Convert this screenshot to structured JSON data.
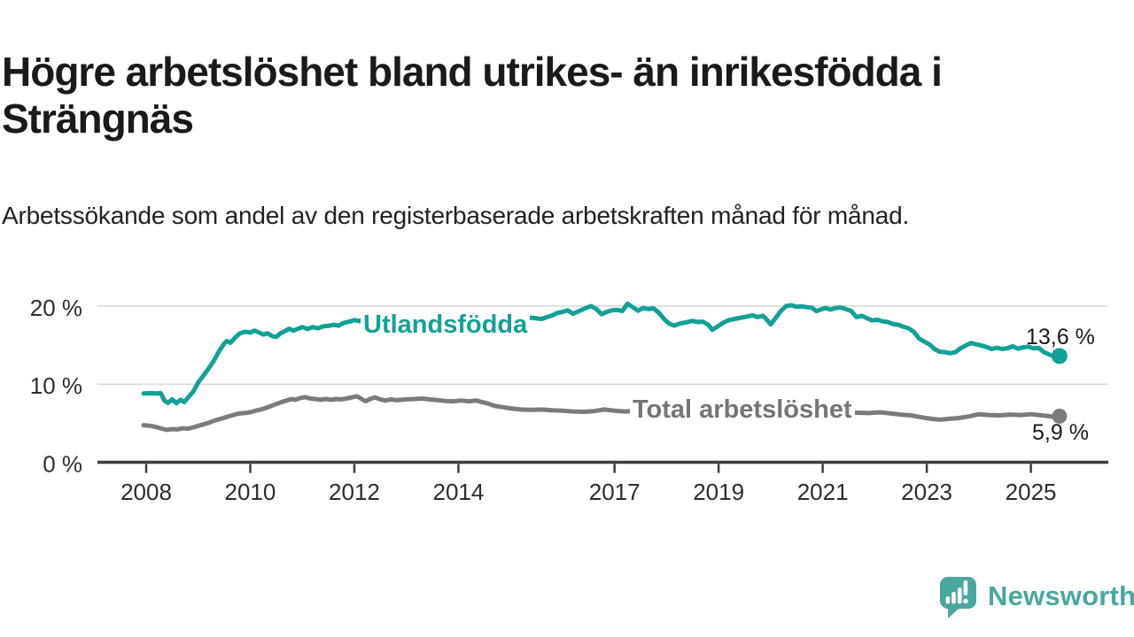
{
  "header": {
    "title": "Högre arbetslöshet bland utrikes- än inrikesfödda i Strängnäs",
    "subtitle": "Arbetssökande som andel av den registerbaserade arbetskraften månad för månad."
  },
  "colors": {
    "accent_teal": "#12A195",
    "line_gray": "#7b7b7b",
    "label_gray": "#757575",
    "brand_teal": "#4AA79E",
    "grid": "#d8d8d8",
    "axis": "#3d3d3d",
    "text": "#1a1a1a"
  },
  "footer": {
    "brand": "Newsworthy"
  },
  "chart_data": {
    "type": "line",
    "title": "Högre arbetslöshet bland utrikes- än inrikesfödda i Strängnäs",
    "subtitle": "Arbetssökande som andel av den registerbaserade arbetskraften månad för månad.",
    "xlabel": "",
    "ylabel": "",
    "grid": "horizontal",
    "legend_position": "inline",
    "x_range_years": [
      2007.9,
      2026.0
    ],
    "ylim": [
      0,
      22
    ],
    "y_axis": {
      "ticks": [
        {
          "value": 0,
          "label": "0 %"
        },
        {
          "value": 10,
          "label": "10 %"
        },
        {
          "value": 20,
          "label": "20 %"
        }
      ]
    },
    "x_axis": {
      "ticks": [
        {
          "year": 2008,
          "label": "2008"
        },
        {
          "year": 2010,
          "label": "2010"
        },
        {
          "year": 2012,
          "label": "2012"
        },
        {
          "year": 2014,
          "label": "2014"
        },
        {
          "year": 2017,
          "label": "2017"
        },
        {
          "year": 2019,
          "label": "2019"
        },
        {
          "year": 2021,
          "label": "2021"
        },
        {
          "year": 2023,
          "label": "2023"
        },
        {
          "year": 2025,
          "label": "2025"
        }
      ]
    },
    "series": [
      {
        "name": "Utlandsfödda",
        "color": "#12A195",
        "end_value": 13.6,
        "end_value_label": "13,6 %",
        "points": [
          [
            2007.95,
            8.8
          ],
          [
            2008.1,
            8.85
          ],
          [
            2008.2,
            8.8
          ],
          [
            2008.28,
            8.85
          ],
          [
            2008.35,
            7.9
          ],
          [
            2008.42,
            7.6
          ],
          [
            2008.5,
            8.05
          ],
          [
            2008.58,
            7.55
          ],
          [
            2008.66,
            8.0
          ],
          [
            2008.73,
            7.7
          ],
          [
            2008.82,
            8.4
          ],
          [
            2008.9,
            9.0
          ],
          [
            2009.0,
            10.2
          ],
          [
            2009.1,
            11.1
          ],
          [
            2009.2,
            12.0
          ],
          [
            2009.3,
            13.0
          ],
          [
            2009.4,
            14.2
          ],
          [
            2009.5,
            15.2
          ],
          [
            2009.55,
            15.5
          ],
          [
            2009.62,
            15.3
          ],
          [
            2009.7,
            15.9
          ],
          [
            2009.8,
            16.5
          ],
          [
            2009.9,
            16.7
          ],
          [
            2010.0,
            16.6
          ],
          [
            2010.08,
            16.85
          ],
          [
            2010.17,
            16.6
          ],
          [
            2010.25,
            16.35
          ],
          [
            2010.33,
            16.5
          ],
          [
            2010.42,
            16.15
          ],
          [
            2010.5,
            16.05
          ],
          [
            2010.58,
            16.5
          ],
          [
            2010.67,
            16.8
          ],
          [
            2010.75,
            17.1
          ],
          [
            2010.83,
            16.85
          ],
          [
            2010.92,
            17.1
          ],
          [
            2011.0,
            17.3
          ],
          [
            2011.1,
            17.05
          ],
          [
            2011.2,
            17.3
          ],
          [
            2011.3,
            17.15
          ],
          [
            2011.4,
            17.4
          ],
          [
            2011.5,
            17.45
          ],
          [
            2011.6,
            17.6
          ],
          [
            2011.7,
            17.5
          ],
          [
            2011.8,
            17.85
          ],
          [
            2011.9,
            18.0
          ],
          [
            2012.0,
            18.2
          ],
          [
            2012.1,
            18.05
          ],
          [
            2012.2,
            18.5
          ],
          [
            2012.3,
            18.2
          ],
          [
            2012.4,
            18.45
          ],
          [
            2012.5,
            18.3
          ],
          [
            2012.6,
            18.5
          ],
          [
            2012.7,
            18.35
          ],
          [
            2012.8,
            18.55
          ],
          [
            2012.9,
            18.45
          ],
          [
            2013.0,
            18.55
          ],
          [
            2013.2,
            18.4
          ],
          [
            2013.4,
            18.6
          ],
          [
            2013.6,
            18.45
          ],
          [
            2013.8,
            18.65
          ],
          [
            2014.0,
            18.55
          ],
          [
            2014.2,
            18.4
          ],
          [
            2014.4,
            18.65
          ],
          [
            2014.6,
            18.5
          ],
          [
            2014.8,
            18.35
          ],
          [
            2015.0,
            18.45
          ],
          [
            2015.2,
            18.3
          ],
          [
            2015.4,
            18.5
          ],
          [
            2015.6,
            18.35
          ],
          [
            2015.8,
            18.8
          ],
          [
            2015.9,
            19.1
          ],
          [
            2016.0,
            19.25
          ],
          [
            2016.1,
            19.45
          ],
          [
            2016.2,
            19.0
          ],
          [
            2016.3,
            19.3
          ],
          [
            2016.45,
            19.75
          ],
          [
            2016.55,
            20.0
          ],
          [
            2016.65,
            19.6
          ],
          [
            2016.75,
            18.95
          ],
          [
            2016.85,
            19.25
          ],
          [
            2016.95,
            19.45
          ],
          [
            2017.05,
            19.5
          ],
          [
            2017.15,
            19.35
          ],
          [
            2017.25,
            20.3
          ],
          [
            2017.35,
            19.85
          ],
          [
            2017.45,
            19.4
          ],
          [
            2017.55,
            19.75
          ],
          [
            2017.65,
            19.6
          ],
          [
            2017.75,
            19.7
          ],
          [
            2017.85,
            19.15
          ],
          [
            2017.95,
            18.35
          ],
          [
            2018.05,
            17.75
          ],
          [
            2018.15,
            17.5
          ],
          [
            2018.25,
            17.75
          ],
          [
            2018.4,
            17.95
          ],
          [
            2018.5,
            18.1
          ],
          [
            2018.6,
            17.95
          ],
          [
            2018.7,
            18.0
          ],
          [
            2018.8,
            17.6
          ],
          [
            2018.88,
            16.95
          ],
          [
            2018.96,
            17.3
          ],
          [
            2019.1,
            17.9
          ],
          [
            2019.2,
            18.2
          ],
          [
            2019.35,
            18.4
          ],
          [
            2019.5,
            18.6
          ],
          [
            2019.65,
            18.8
          ],
          [
            2019.75,
            18.6
          ],
          [
            2019.85,
            18.75
          ],
          [
            2019.92,
            18.3
          ],
          [
            2020.0,
            17.65
          ],
          [
            2020.1,
            18.5
          ],
          [
            2020.2,
            19.4
          ],
          [
            2020.3,
            20.0
          ],
          [
            2020.4,
            20.1
          ],
          [
            2020.5,
            19.9
          ],
          [
            2020.6,
            19.95
          ],
          [
            2020.7,
            19.85
          ],
          [
            2020.8,
            19.75
          ],
          [
            2020.88,
            19.35
          ],
          [
            2020.96,
            19.55
          ],
          [
            2021.05,
            19.75
          ],
          [
            2021.15,
            19.55
          ],
          [
            2021.25,
            19.75
          ],
          [
            2021.35,
            19.8
          ],
          [
            2021.45,
            19.6
          ],
          [
            2021.55,
            19.35
          ],
          [
            2021.65,
            18.6
          ],
          [
            2021.75,
            18.75
          ],
          [
            2021.85,
            18.45
          ],
          [
            2021.95,
            18.15
          ],
          [
            2022.05,
            18.25
          ],
          [
            2022.15,
            18.05
          ],
          [
            2022.25,
            17.95
          ],
          [
            2022.35,
            17.7
          ],
          [
            2022.45,
            17.6
          ],
          [
            2022.55,
            17.35
          ],
          [
            2022.65,
            17.15
          ],
          [
            2022.75,
            16.7
          ],
          [
            2022.85,
            15.85
          ],
          [
            2022.95,
            15.45
          ],
          [
            2023.05,
            15.1
          ],
          [
            2023.15,
            14.5
          ],
          [
            2023.25,
            14.15
          ],
          [
            2023.35,
            14.1
          ],
          [
            2023.45,
            13.95
          ],
          [
            2023.55,
            14.1
          ],
          [
            2023.65,
            14.6
          ],
          [
            2023.75,
            14.95
          ],
          [
            2023.85,
            15.25
          ],
          [
            2023.95,
            15.1
          ],
          [
            2024.05,
            14.95
          ],
          [
            2024.15,
            14.75
          ],
          [
            2024.25,
            14.5
          ],
          [
            2024.35,
            14.65
          ],
          [
            2024.45,
            14.5
          ],
          [
            2024.55,
            14.6
          ],
          [
            2024.65,
            14.85
          ],
          [
            2024.75,
            14.55
          ],
          [
            2024.85,
            14.7
          ],
          [
            2024.95,
            14.8
          ],
          [
            2025.05,
            14.6
          ],
          [
            2025.15,
            14.65
          ],
          [
            2025.25,
            14.1
          ],
          [
            2025.35,
            13.8
          ],
          [
            2025.45,
            13.55
          ],
          [
            2025.55,
            13.6
          ]
        ]
      },
      {
        "name": "Total arbetslöshet",
        "color": "#7b7b7b",
        "end_value": 5.9,
        "end_value_label": "5,9 %",
        "points": [
          [
            2007.95,
            4.75
          ],
          [
            2008.1,
            4.65
          ],
          [
            2008.2,
            4.5
          ],
          [
            2008.3,
            4.3
          ],
          [
            2008.4,
            4.15
          ],
          [
            2008.5,
            4.25
          ],
          [
            2008.6,
            4.2
          ],
          [
            2008.7,
            4.35
          ],
          [
            2008.8,
            4.3
          ],
          [
            2008.9,
            4.45
          ],
          [
            2009.0,
            4.65
          ],
          [
            2009.1,
            4.85
          ],
          [
            2009.2,
            5.05
          ],
          [
            2009.3,
            5.3
          ],
          [
            2009.4,
            5.5
          ],
          [
            2009.5,
            5.7
          ],
          [
            2009.6,
            5.9
          ],
          [
            2009.7,
            6.1
          ],
          [
            2009.8,
            6.25
          ],
          [
            2009.9,
            6.3
          ],
          [
            2010.0,
            6.4
          ],
          [
            2010.1,
            6.6
          ],
          [
            2010.2,
            6.75
          ],
          [
            2010.3,
            6.95
          ],
          [
            2010.4,
            7.2
          ],
          [
            2010.5,
            7.45
          ],
          [
            2010.6,
            7.7
          ],
          [
            2010.7,
            7.9
          ],
          [
            2010.8,
            8.1
          ],
          [
            2010.87,
            8.0
          ],
          [
            2010.95,
            8.2
          ],
          [
            2011.05,
            8.35
          ],
          [
            2011.15,
            8.15
          ],
          [
            2011.25,
            8.1
          ],
          [
            2011.35,
            8.0
          ],
          [
            2011.45,
            8.1
          ],
          [
            2011.55,
            8.0
          ],
          [
            2011.65,
            8.1
          ],
          [
            2011.75,
            8.05
          ],
          [
            2011.85,
            8.15
          ],
          [
            2011.95,
            8.3
          ],
          [
            2012.05,
            8.45
          ],
          [
            2012.15,
            8.05
          ],
          [
            2012.22,
            7.8
          ],
          [
            2012.3,
            8.1
          ],
          [
            2012.4,
            8.3
          ],
          [
            2012.5,
            8.05
          ],
          [
            2012.6,
            7.9
          ],
          [
            2012.7,
            8.05
          ],
          [
            2012.8,
            7.95
          ],
          [
            2012.9,
            8.0
          ],
          [
            2013.0,
            8.05
          ],
          [
            2013.15,
            8.1
          ],
          [
            2013.3,
            8.15
          ],
          [
            2013.45,
            8.05
          ],
          [
            2013.6,
            7.95
          ],
          [
            2013.75,
            7.85
          ],
          [
            2013.9,
            7.8
          ],
          [
            2014.05,
            7.9
          ],
          [
            2014.2,
            7.8
          ],
          [
            2014.35,
            7.9
          ],
          [
            2014.45,
            7.7
          ],
          [
            2014.55,
            7.55
          ],
          [
            2014.7,
            7.2
          ],
          [
            2014.85,
            7.05
          ],
          [
            2015.0,
            6.9
          ],
          [
            2015.2,
            6.75
          ],
          [
            2015.4,
            6.7
          ],
          [
            2015.6,
            6.75
          ],
          [
            2015.8,
            6.65
          ],
          [
            2016.0,
            6.6
          ],
          [
            2016.2,
            6.5
          ],
          [
            2016.4,
            6.45
          ],
          [
            2016.6,
            6.55
          ],
          [
            2016.8,
            6.75
          ],
          [
            2017.0,
            6.6
          ],
          [
            2017.2,
            6.5
          ],
          [
            2017.4,
            6.6
          ],
          [
            2017.6,
            6.55
          ],
          [
            2017.8,
            6.5
          ],
          [
            2018.0,
            6.45
          ],
          [
            2018.3,
            6.4
          ],
          [
            2018.6,
            6.35
          ],
          [
            2018.9,
            6.3
          ],
          [
            2019.2,
            6.35
          ],
          [
            2019.5,
            6.3
          ],
          [
            2019.8,
            6.25
          ],
          [
            2020.1,
            6.35
          ],
          [
            2020.4,
            6.55
          ],
          [
            2020.7,
            6.5
          ],
          [
            2021.0,
            6.45
          ],
          [
            2021.3,
            6.4
          ],
          [
            2021.6,
            6.35
          ],
          [
            2021.9,
            6.3
          ],
          [
            2022.1,
            6.4
          ],
          [
            2022.3,
            6.25
          ],
          [
            2022.5,
            6.1
          ],
          [
            2022.7,
            6.0
          ],
          [
            2022.9,
            5.75
          ],
          [
            2023.1,
            5.55
          ],
          [
            2023.25,
            5.45
          ],
          [
            2023.4,
            5.55
          ],
          [
            2023.6,
            5.65
          ],
          [
            2023.8,
            5.85
          ],
          [
            2024.0,
            6.15
          ],
          [
            2024.2,
            6.05
          ],
          [
            2024.4,
            6.0
          ],
          [
            2024.6,
            6.1
          ],
          [
            2024.8,
            6.05
          ],
          [
            2025.0,
            6.15
          ],
          [
            2025.15,
            6.05
          ],
          [
            2025.3,
            5.95
          ],
          [
            2025.45,
            5.8
          ],
          [
            2025.55,
            5.9
          ]
        ]
      }
    ]
  }
}
